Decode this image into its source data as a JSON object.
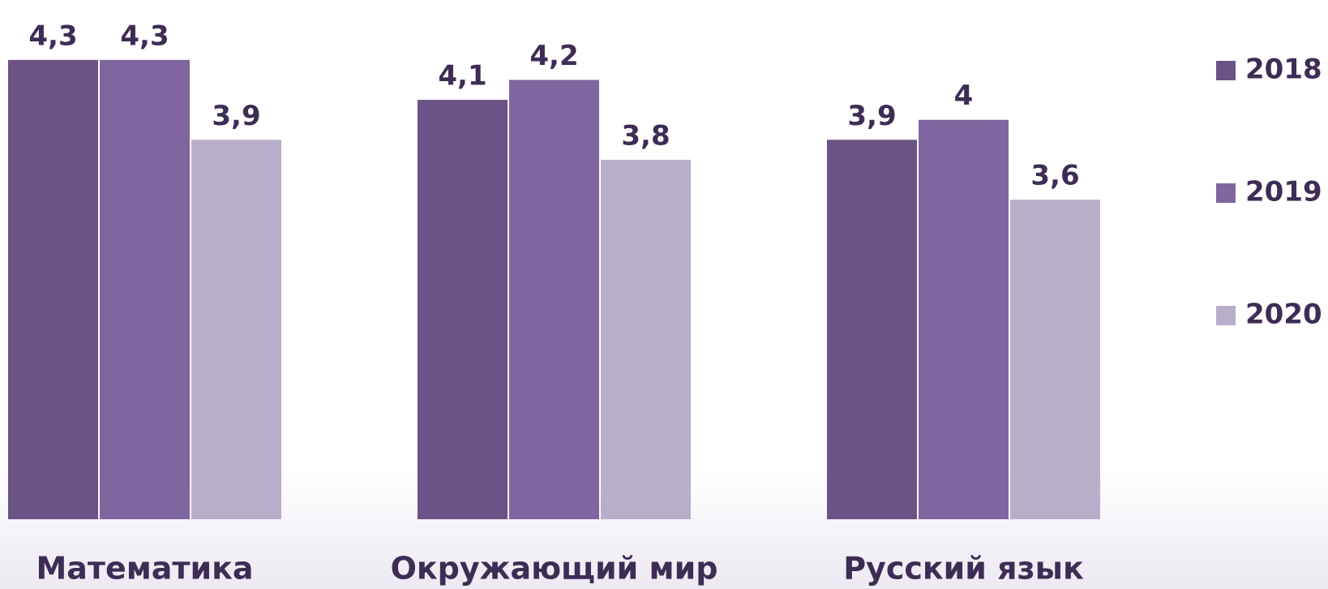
{
  "chart_data": {
    "type": "bar",
    "categories": [
      "Математика",
      "Окружающий мир",
      "Русский  язык"
    ],
    "series": [
      {
        "name": "2018",
        "color": "#6b5287",
        "values": [
          4.3,
          4.1,
          3.9
        ],
        "value_labels": [
          "4,3",
          "4,1",
          "3,9"
        ]
      },
      {
        "name": "2019",
        "color": "#8066a0",
        "values": [
          4.3,
          4.2,
          4
        ],
        "value_labels": [
          "4,3",
          "4,2",
          "4"
        ]
      },
      {
        "name": "2020",
        "color": "#b9aec9",
        "values": [
          3.9,
          3.8,
          3.6
        ],
        "value_labels": [
          "3,9",
          "3,8",
          "3,6"
        ]
      }
    ],
    "ylim": [
      2,
      4.6
    ],
    "legend": "right"
  }
}
